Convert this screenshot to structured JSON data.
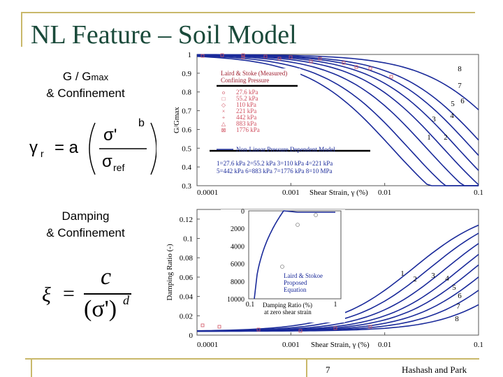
{
  "slide": {
    "title": "NL Feature – Soil Model",
    "page_number": "7",
    "footer_credit": "Hashash and Park"
  },
  "labels": {
    "ggmax_line1": "G / G",
    "ggmax_sub": "max",
    "ggmax_line2": "& Confinement",
    "damping_line1": "Damping",
    "damping_line2": "& Confinement"
  },
  "equations": {
    "gamma_r": "γ",
    "gamma_r_sub": "r",
    "equals_a": "= a",
    "sigma_prime": "σ'",
    "sigma_ref": "σ",
    "sigma_ref_sub": "ref",
    "exp_b": "b",
    "xi": "ξ",
    "equals": "=",
    "c": "c",
    "denominator": "(σ')",
    "exp_d": "d"
  },
  "top_chart": {
    "y_ticks": [
      "1",
      "0.9",
      "0.8",
      "0.7",
      "0.6",
      "0.5",
      "0.4",
      "0.3"
    ],
    "x_ticks": [
      "0.0001",
      "0.001",
      "0.01",
      "0.1"
    ],
    "x_label": "Shear Strain, γ (%)",
    "y_label": "G/Gmax",
    "legend_title": "Laird & Stoke (Measured)",
    "legend_subtitle": "Confining Pressure",
    "legend_items": [
      {
        "symbol": "o",
        "label": "27.6 kPa"
      },
      {
        "symbol": "□",
        "label": "55.2 kPa"
      },
      {
        "symbol": "◇",
        "label": "110 kPa"
      },
      {
        "symbol": "×",
        "label": "221 kPa"
      },
      {
        "symbol": "+",
        "label": "442 kPa"
      },
      {
        "symbol": "△",
        "label": "883 kPa"
      },
      {
        "symbol": "⊠",
        "label": "1776 kPa"
      }
    ],
    "model_label": "Non-Linear Pressure Dependent Model",
    "key_line1": "1=27.6 kPa   2=55.2 kPa   3=110 kPa   4=221 kPa",
    "key_line2": "5=442 kPa   6=883  kPa   7=1776 kPa  8=10 MPa",
    "curve_numbers": [
      "1",
      "2",
      "3",
      "4",
      "5",
      "6",
      "7",
      "8"
    ]
  },
  "bottom_chart": {
    "y_ticks": [
      "0.12",
      "0.1",
      "0.08",
      "0.06",
      "0.04",
      "0.02",
      "0"
    ],
    "x_ticks": [
      "0.0001",
      "0.001",
      "0.01",
      "0.1"
    ],
    "x_label": "Shear Strain, γ (%)",
    "y_label": "Damping Ratio (-)",
    "curve_numbers": [
      "1",
      "2",
      "3",
      "4",
      "5",
      "6",
      "7",
      "8"
    ],
    "inset": {
      "y_ticks": [
        "0",
        "2000",
        "4000",
        "6000",
        "8000",
        "10000"
      ],
      "x_ticks": [
        "0.1",
        "1"
      ],
      "x_label_line1": "Damping Ratio (%)",
      "x_label_line2": "at zero shear strain",
      "legend_items": [
        "Laird & Stokoe",
        "Proposed",
        "Equation"
      ]
    }
  },
  "colors": {
    "title": "#1a4a3a",
    "rule": "#c9b86a",
    "curve": "#1a2a9a",
    "marker": "#d05060"
  }
}
